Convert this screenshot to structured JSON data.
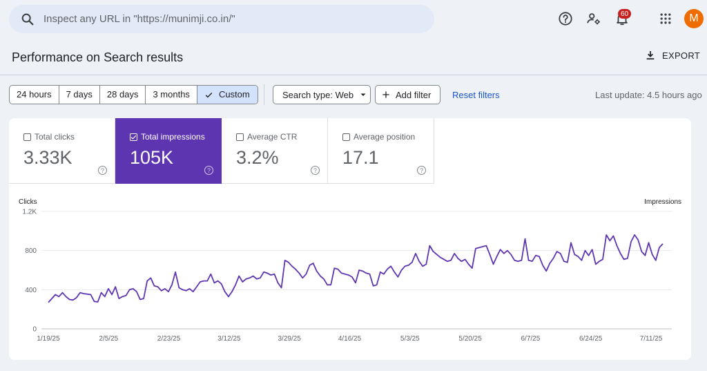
{
  "search": {
    "placeholder": "Inspect any URL in \"https://munimji.co.in/\""
  },
  "header": {
    "notifications_count": "60",
    "avatar_letter": "M"
  },
  "page": {
    "title": "Performance on Search results",
    "export_label": "EXPORT"
  },
  "filters": {
    "ranges": [
      {
        "label": "24 hours",
        "active": false
      },
      {
        "label": "7 days",
        "active": false
      },
      {
        "label": "28 days",
        "active": false
      },
      {
        "label": "3 months",
        "active": false
      },
      {
        "label": "Custom",
        "active": true
      }
    ],
    "search_type_label": "Search type: Web",
    "add_filter_label": "Add filter",
    "reset_label": "Reset filters",
    "last_update": "Last update: 4.5 hours ago"
  },
  "metrics": [
    {
      "label": "Total clicks",
      "value": "3.33K",
      "checked": false
    },
    {
      "label": "Total impressions",
      "value": "105K",
      "checked": true
    },
    {
      "label": "Average CTR",
      "value": "3.2%",
      "checked": false
    },
    {
      "label": "Average position",
      "value": "17.1",
      "checked": false
    }
  ],
  "colors": {
    "accent": "#5e35b1",
    "link": "#1a56c4",
    "selected_range": "#d3e3fd"
  },
  "chart_data": {
    "type": "line",
    "left_axis_label": "Clicks",
    "right_axis_label": "Impressions",
    "yticks": [
      "0",
      "400",
      "800",
      "1.2K"
    ],
    "ylim": [
      0,
      1200
    ],
    "xticks": [
      "1/19/25",
      "2/5/25",
      "2/23/25",
      "3/12/25",
      "3/29/25",
      "4/16/25",
      "5/3/25",
      "5/20/25",
      "6/7/25",
      "6/24/25",
      "7/11/25"
    ],
    "series": [
      {
        "color": "#5e35b1",
        "values": [
          270,
          310,
          350,
          330,
          370,
          330,
          300,
          295,
          320,
          370,
          360,
          355,
          350,
          280,
          275,
          370,
          330,
          410,
          350,
          430,
          310,
          330,
          340,
          400,
          410,
          380,
          300,
          310,
          490,
          520,
          440,
          430,
          390,
          410,
          380,
          450,
          580,
          420,
          400,
          390,
          410,
          380,
          430,
          480,
          490,
          490,
          560,
          470,
          490,
          460,
          380,
          330,
          380,
          450,
          540,
          480,
          510,
          520,
          540,
          510,
          520,
          580,
          570,
          550,
          560,
          470,
          420,
          700,
          680,
          640,
          610,
          570,
          520,
          560,
          650,
          670,
          590,
          540,
          510,
          450,
          450,
          620,
          610,
          570,
          560,
          550,
          530,
          470,
          600,
          590,
          570,
          560,
          440,
          450,
          580,
          560,
          610,
          640,
          580,
          530,
          600,
          640,
          650,
          680,
          770,
          690,
          640,
          660,
          850,
          790,
          760,
          730,
          710,
          690,
          700,
          770,
          720,
          690,
          710,
          660,
          620,
          820,
          830,
          840,
          850,
          760,
          660,
          740,
          810,
          770,
          800,
          760,
          700,
          690,
          700,
          920,
          700,
          690,
          750,
          740,
          650,
          590,
          670,
          720,
          790,
          770,
          690,
          680,
          880,
          760,
          740,
          700,
          800,
          750,
          810,
          660,
          690,
          710,
          960,
          900,
          950,
          850,
          770,
          710,
          720,
          890,
          960,
          910,
          790,
          750,
          880,
          760,
          700,
          830,
          870
        ]
      }
    ]
  }
}
